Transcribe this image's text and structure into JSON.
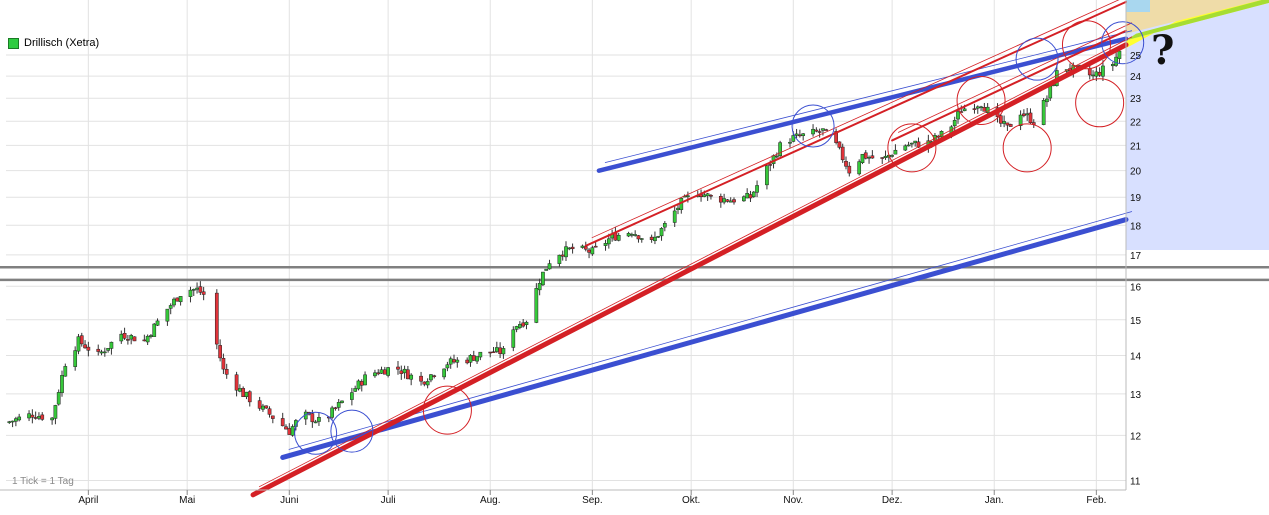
{
  "chart_data": {
    "type": "candlestick",
    "title": "",
    "legend": [
      {
        "name": "Drillisch (Xetra)",
        "color": "#2ecc40",
        "position": "top-left"
      }
    ],
    "footnote": "1 Tick = 1 Tag",
    "annotation": "?",
    "y_scale": "log",
    "ylim": [
      10.8,
      27.8
    ],
    "y_ticks": [
      11,
      12,
      13,
      14,
      15,
      16,
      17,
      18,
      19,
      20,
      21,
      22,
      23,
      24,
      25
    ],
    "x_ticks": [
      "April",
      "Mai",
      "Juni",
      "Juli",
      "Aug.",
      "Sep.",
      "Okt.",
      "Nov.",
      "Dez.",
      "Jan.",
      "Feb."
    ],
    "grid": true,
    "series": [
      {
        "name": "Drillisch (Xetra)",
        "close_path": [
          {
            "x": 0,
            "y": 12.3
          },
          {
            "x": 8,
            "y": 12.5
          },
          {
            "x": 14,
            "y": 12.4
          },
          {
            "x": 18,
            "y": 13.8
          },
          {
            "x": 22,
            "y": 14.4
          },
          {
            "x": 28,
            "y": 14.0
          },
          {
            "x": 35,
            "y": 14.6
          },
          {
            "x": 42,
            "y": 14.4
          },
          {
            "x": 48,
            "y": 15.2
          },
          {
            "x": 54,
            "y": 15.9
          },
          {
            "x": 58,
            "y": 15.9
          },
          {
            "x": 62,
            "y": 15.6
          },
          {
            "x": 64,
            "y": 14.3
          },
          {
            "x": 66,
            "y": 13.6
          },
          {
            "x": 72,
            "y": 13.0
          },
          {
            "x": 80,
            "y": 12.5
          },
          {
            "x": 86,
            "y": 12.1
          },
          {
            "x": 90,
            "y": 12.5
          },
          {
            "x": 96,
            "y": 12.3
          },
          {
            "x": 102,
            "y": 12.8
          },
          {
            "x": 110,
            "y": 13.5
          },
          {
            "x": 118,
            "y": 13.7
          },
          {
            "x": 126,
            "y": 13.3
          },
          {
            "x": 134,
            "y": 13.8
          },
          {
            "x": 140,
            "y": 13.9
          },
          {
            "x": 146,
            "y": 14.1
          },
          {
            "x": 151,
            "y": 14.1
          },
          {
            "x": 154,
            "y": 14.8
          },
          {
            "x": 158,
            "y": 15.0
          },
          {
            "x": 162,
            "y": 16.2
          },
          {
            "x": 166,
            "y": 17.0
          },
          {
            "x": 172,
            "y": 17.2
          },
          {
            "x": 178,
            "y": 17.1
          },
          {
            "x": 184,
            "y": 17.6
          },
          {
            "x": 190,
            "y": 17.8
          },
          {
            "x": 196,
            "y": 17.4
          },
          {
            "x": 200,
            "y": 18.0
          },
          {
            "x": 205,
            "y": 18.8
          },
          {
            "x": 210,
            "y": 19.2
          },
          {
            "x": 214,
            "y": 19.0
          },
          {
            "x": 220,
            "y": 18.9
          },
          {
            "x": 226,
            "y": 19.0
          },
          {
            "x": 232,
            "y": 20.3
          },
          {
            "x": 236,
            "y": 21.2
          },
          {
            "x": 242,
            "y": 21.4
          },
          {
            "x": 248,
            "y": 21.6
          },
          {
            "x": 252,
            "y": 21.0
          },
          {
            "x": 256,
            "y": 20.0
          },
          {
            "x": 260,
            "y": 20.6
          },
          {
            "x": 266,
            "y": 20.4
          },
          {
            "x": 272,
            "y": 21.0
          },
          {
            "x": 280,
            "y": 21.1
          },
          {
            "x": 286,
            "y": 21.6
          },
          {
            "x": 290,
            "y": 22.5
          },
          {
            "x": 296,
            "y": 22.8
          },
          {
            "x": 300,
            "y": 22.1
          },
          {
            "x": 304,
            "y": 21.7
          },
          {
            "x": 308,
            "y": 22.4
          },
          {
            "x": 312,
            "y": 22.0
          },
          {
            "x": 316,
            "y": 23.0
          },
          {
            "x": 320,
            "y": 24.5
          },
          {
            "x": 326,
            "y": 24.2
          },
          {
            "x": 330,
            "y": 24.0
          },
          {
            "x": 336,
            "y": 24.6
          },
          {
            "x": 338,
            "y": 25.2
          }
        ]
      }
    ],
    "horizontal_lines": [
      {
        "y": 16.2,
        "color": "#808080"
      },
      {
        "y": 16.6,
        "color": "#808080"
      }
    ],
    "trend_lines": [
      {
        "color": "#3b4fd1",
        "points": [
          {
            "x": 84,
            "y": 11.5
          },
          {
            "x": 340,
            "y": 18.2
          }
        ]
      },
      {
        "color": "#3b4fd1",
        "points": [
          {
            "x": 180,
            "y": 20.0
          },
          {
            "x": 340,
            "y": 25.8
          }
        ]
      },
      {
        "color": "#d42025",
        "points": [
          {
            "x": 75,
            "y": 10.7
          },
          {
            "x": 340,
            "y": 25.5
          }
        ]
      },
      {
        "color": "#d42025",
        "points": [
          {
            "x": 176,
            "y": 17.3
          },
          {
            "x": 340,
            "y": 27.7
          }
        ]
      },
      {
        "color": "#d42025",
        "points": [
          {
            "x": 269,
            "y": 21.2
          },
          {
            "x": 340,
            "y": 26.2
          }
        ]
      }
    ],
    "circles": [
      {
        "color": "#3b4fd1",
        "x": 94,
        "y": 12.05
      },
      {
        "color": "#3b4fd1",
        "x": 105,
        "y": 12.1
      },
      {
        "color": "#d42025",
        "x": 134,
        "y": 12.6
      },
      {
        "color": "#3b4fd1",
        "x": 245,
        "y": 21.8
      },
      {
        "color": "#d42025",
        "x": 275,
        "y": 20.9
      },
      {
        "color": "#d42025",
        "x": 296,
        "y": 22.9
      },
      {
        "color": "#d42025",
        "x": 310,
        "y": 20.9
      },
      {
        "color": "#3b4fd1",
        "x": 313,
        "y": 24.8
      },
      {
        "color": "#d42025",
        "x": 328,
        "y": 25.5
      },
      {
        "color": "#d42025",
        "x": 332,
        "y": 22.8
      },
      {
        "color": "#3b4fd1",
        "x": 339,
        "y": 25.6
      }
    ],
    "shaded_regions": [
      {
        "color": "#d8e0ff",
        "label": "lavender"
      },
      {
        "color": "#ffff33",
        "label": "yellow"
      },
      {
        "color": "#a6dd33",
        "label": "lime"
      },
      {
        "color": "#efdca8",
        "label": "tan"
      },
      {
        "color": "#a9d7ef",
        "label": "sky"
      }
    ]
  }
}
